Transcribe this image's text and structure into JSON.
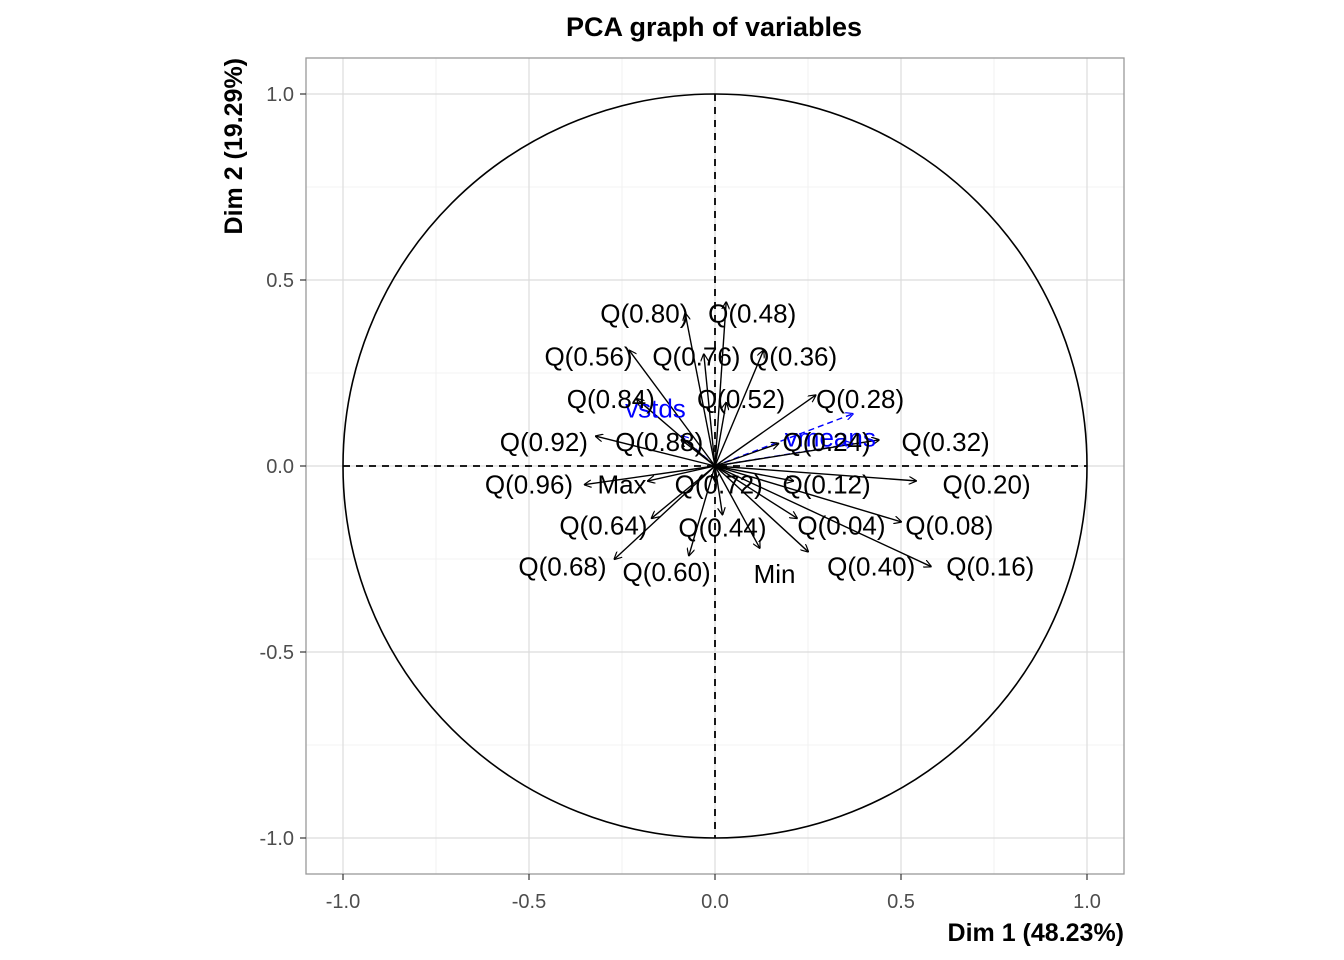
{
  "chart_data": {
    "type": "scatter",
    "subtype": "pca-correlation-circle",
    "title": "PCA graph of variables",
    "xlabel": "Dim 1 (48.23%)",
    "ylabel": "Dim 2 (19.29%)",
    "xlim": [
      -1.1,
      1.1
    ],
    "ylim": [
      -1.1,
      1.1
    ],
    "x_ticks": [
      "-1.0",
      "-0.5",
      "0.0",
      "0.5",
      "1.0"
    ],
    "y_ticks": [
      "-1.0",
      "-0.5",
      "0.0",
      "0.5",
      "1.0"
    ],
    "grid": true,
    "unit_circle": true,
    "colors": {
      "active": "#000000",
      "supplementary": "#0000ff",
      "grid": "#dcdcdc",
      "panel_border": "#999999"
    },
    "active_variables": [
      {
        "name": "Q(0.80)",
        "x": -0.08,
        "y": 0.41,
        "lx": -0.19,
        "ly": 0.41
      },
      {
        "name": "Q(0.48)",
        "x": 0.03,
        "y": 0.44,
        "lx": 0.1,
        "ly": 0.41
      },
      {
        "name": "Q(0.56)",
        "x": -0.23,
        "y": 0.31,
        "lx": -0.34,
        "ly": 0.295
      },
      {
        "name": "Q(0.76)",
        "x": -0.03,
        "y": 0.3,
        "lx": -0.05,
        "ly": 0.295
      },
      {
        "name": "Q(0.36)",
        "x": 0.13,
        "y": 0.31,
        "lx": 0.21,
        "ly": 0.295
      },
      {
        "name": "Q(0.84)",
        "x": -0.21,
        "y": 0.18,
        "lx": -0.28,
        "ly": 0.18
      },
      {
        "name": "Q(0.52)",
        "x": 0.03,
        "y": 0.17,
        "lx": 0.07,
        "ly": 0.18
      },
      {
        "name": "Q(0.28)",
        "x": 0.27,
        "y": 0.19,
        "lx": 0.39,
        "ly": 0.18
      },
      {
        "name": "Q(0.92)",
        "x": -0.32,
        "y": 0.08,
        "lx": -0.46,
        "ly": 0.065
      },
      {
        "name": "Q(0.88)",
        "x": -0.09,
        "y": 0.07,
        "lx": -0.15,
        "ly": 0.065
      },
      {
        "name": "Q(0.24)",
        "x": 0.17,
        "y": 0.06,
        "lx": 0.3,
        "ly": 0.065
      },
      {
        "name": "Q(0.32)",
        "x": 0.44,
        "y": 0.07,
        "lx": 0.62,
        "ly": 0.065
      },
      {
        "name": "Q(0.96)",
        "x": -0.35,
        "y": -0.05,
        "lx": -0.5,
        "ly": -0.05
      },
      {
        "name": "Max",
        "x": -0.18,
        "y": -0.04,
        "lx": -0.25,
        "ly": -0.05
      },
      {
        "name": "Q(0.72)",
        "x": 0.0,
        "y": -0.04,
        "lx": 0.01,
        "ly": -0.05
      },
      {
        "name": "Q(0.12)",
        "x": 0.21,
        "y": -0.04,
        "lx": 0.3,
        "ly": -0.05
      },
      {
        "name": "Q(0.20)",
        "x": 0.54,
        "y": -0.04,
        "lx": 0.73,
        "ly": -0.05
      },
      {
        "name": "Q(0.64)",
        "x": -0.17,
        "y": -0.14,
        "lx": -0.3,
        "ly": -0.16
      },
      {
        "name": "Q(0.44)",
        "x": 0.02,
        "y": -0.13,
        "lx": 0.02,
        "ly": -0.165
      },
      {
        "name": "Q(0.04)",
        "x": 0.22,
        "y": -0.14,
        "lx": 0.34,
        "ly": -0.16
      },
      {
        "name": "Q(0.08)",
        "x": 0.5,
        "y": -0.15,
        "lx": 0.63,
        "ly": -0.16
      },
      {
        "name": "Q(0.68)",
        "x": -0.27,
        "y": -0.25,
        "lx": -0.41,
        "ly": -0.27
      },
      {
        "name": "Q(0.60)",
        "x": -0.07,
        "y": -0.24,
        "lx": -0.13,
        "ly": -0.285
      },
      {
        "name": "Min",
        "x": 0.12,
        "y": -0.22,
        "lx": 0.16,
        "ly": -0.29
      },
      {
        "name": "Q(0.40)",
        "x": 0.25,
        "y": -0.23,
        "lx": 0.42,
        "ly": -0.27
      },
      {
        "name": "Q(0.16)",
        "x": 0.58,
        "y": -0.27,
        "lx": 0.74,
        "ly": -0.27
      }
    ],
    "supplementary_variables": [
      {
        "name": "vstds",
        "x": -0.09,
        "y": 0.08,
        "lx": -0.16,
        "ly": 0.155
      },
      {
        "name": "vmeans",
        "x": 0.37,
        "y": 0.06,
        "lx": 0.31,
        "ly": 0.077
      },
      {
        "name": "Q(0.32)",
        "x": 0.37,
        "y": 0.14,
        "lx": 0.37,
        "ly": 0.14
      }
    ]
  }
}
